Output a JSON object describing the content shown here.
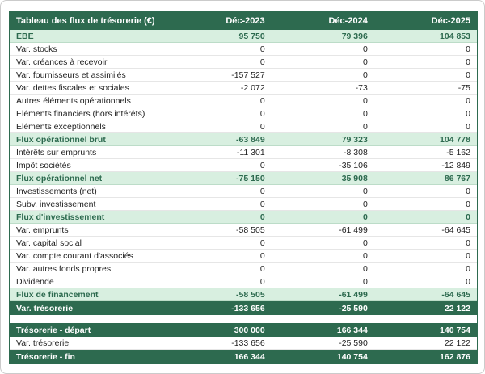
{
  "table": {
    "title": "Tableau des flux de trésorerie (€)",
    "columns": [
      "Déc-2023",
      "Déc-2024",
      "Déc-2025"
    ],
    "colors": {
      "header_bg": "#2d6a4f",
      "header_text": "#ffffff",
      "subtotal_bg": "#d8efe0",
      "subtotal_text": "#2d6a4f",
      "subtotal_border": "#bcdcc8",
      "total_bg": "#2d6a4f",
      "total_text": "#ffffff",
      "row_text": "#1e1e1e",
      "row_border": "#e6e6e6",
      "table_border": "#2d6a4f"
    },
    "rows": [
      {
        "label": "EBE",
        "values": [
          "95 750",
          "79 396",
          "104 853"
        ],
        "style": "subtotal"
      },
      {
        "label": "Var. stocks",
        "values": [
          "0",
          "0",
          "0"
        ],
        "style": "normal"
      },
      {
        "label": "Var. créances à recevoir",
        "values": [
          "0",
          "0",
          "0"
        ],
        "style": "normal"
      },
      {
        "label": "Var. fournisseurs et assimilés",
        "values": [
          "-157 527",
          "0",
          "0"
        ],
        "style": "normal"
      },
      {
        "label": "Var. dettes fiscales et sociales",
        "values": [
          "-2 072",
          "-73",
          "-75"
        ],
        "style": "normal"
      },
      {
        "label": "Autres éléments opérationnels",
        "values": [
          "0",
          "0",
          "0"
        ],
        "style": "normal"
      },
      {
        "label": "Eléments financiers (hors intérêts)",
        "values": [
          "0",
          "0",
          "0"
        ],
        "style": "normal"
      },
      {
        "label": "Eléments exceptionnels",
        "values": [
          "0",
          "0",
          "0"
        ],
        "style": "normal"
      },
      {
        "label": "Flux opérationnel brut",
        "values": [
          "-63 849",
          "79 323",
          "104 778"
        ],
        "style": "subtotal"
      },
      {
        "label": "Intérêts sur emprunts",
        "values": [
          "-11 301",
          "-8 308",
          "-5 162"
        ],
        "style": "normal"
      },
      {
        "label": "Impôt sociétés",
        "values": [
          "0",
          "-35 106",
          "-12 849"
        ],
        "style": "normal"
      },
      {
        "label": "Flux opérationnel net",
        "values": [
          "-75 150",
          "35 908",
          "86 767"
        ],
        "style": "subtotal"
      },
      {
        "label": "Investissements (net)",
        "values": [
          "0",
          "0",
          "0"
        ],
        "style": "normal"
      },
      {
        "label": "Subv. investissement",
        "values": [
          "0",
          "0",
          "0"
        ],
        "style": "normal"
      },
      {
        "label": "Flux d'investissement",
        "values": [
          "0",
          "0",
          "0"
        ],
        "style": "subtotal"
      },
      {
        "label": "Var. emprunts",
        "values": [
          "-58 505",
          "-61 499",
          "-64 645"
        ],
        "style": "normal"
      },
      {
        "label": "Var. capital social",
        "values": [
          "0",
          "0",
          "0"
        ],
        "style": "normal"
      },
      {
        "label": "Var. compte courant d'associés",
        "values": [
          "0",
          "0",
          "0"
        ],
        "style": "normal"
      },
      {
        "label": "Var. autres fonds propres",
        "values": [
          "0",
          "0",
          "0"
        ],
        "style": "normal"
      },
      {
        "label": "Dividende",
        "values": [
          "0",
          "0",
          "0"
        ],
        "style": "normal"
      },
      {
        "label": "Flux de financement",
        "values": [
          "-58 505",
          "-61 499",
          "-64 645"
        ],
        "style": "subtotal"
      },
      {
        "label": "Var. trésorerie",
        "values": [
          "-133 656",
          "-25 590",
          "22 122"
        ],
        "style": "total"
      },
      {
        "label": "",
        "values": [
          "",
          "",
          ""
        ],
        "style": "spacer"
      },
      {
        "label": "Trésorerie - départ",
        "values": [
          "300 000",
          "166 344",
          "140 754"
        ],
        "style": "total"
      },
      {
        "label": "Var. trésorerie",
        "values": [
          "-133 656",
          "-25 590",
          "22 122"
        ],
        "style": "normal"
      },
      {
        "label": "Trésorerie - fin",
        "values": [
          "166 344",
          "140 754",
          "162 876"
        ],
        "style": "total"
      }
    ]
  }
}
